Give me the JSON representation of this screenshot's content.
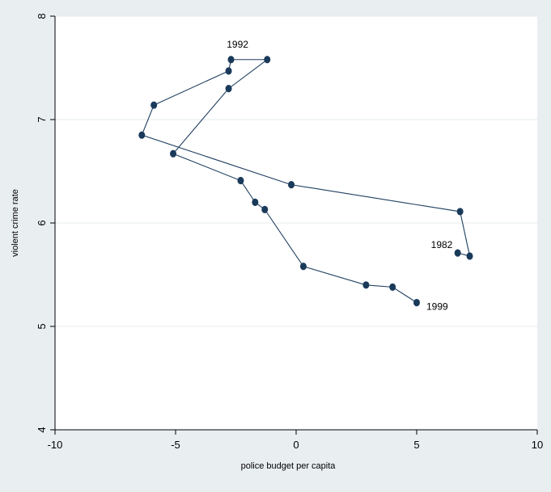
{
  "chart_data": {
    "type": "line",
    "title": "",
    "xlabel": "police budget per capita",
    "ylabel": "violent crime rate",
    "xlim": [
      -10,
      10
    ],
    "ylim": [
      4,
      8
    ],
    "xticks": [
      -10,
      -5,
      0,
      5,
      10
    ],
    "yticks": [
      4,
      5,
      6,
      7,
      8
    ],
    "x_tick_labels": [
      "-10",
      "-5",
      "0",
      "5",
      "10"
    ],
    "y_tick_labels": [
      "4",
      "5",
      "6",
      "7",
      "8"
    ],
    "grid": "horizontal",
    "legend": "none",
    "series": [
      {
        "x": [
          6.7,
          7.2,
          6.8,
          -0.2,
          -6.4,
          -5.9,
          -2.8,
          -2.7,
          -1.2,
          -2.8,
          -5.1,
          -2.3,
          -1.7,
          -1.3,
          0.3,
          2.9,
          4.0,
          5.0
        ],
        "y": [
          5.71,
          5.68,
          6.11,
          6.37,
          6.85,
          7.14,
          7.47,
          7.58,
          7.58,
          7.3,
          6.67,
          6.41,
          6.2,
          6.13,
          5.58,
          5.4,
          5.38,
          5.23
        ],
        "point_labels": {
          "0": "1982",
          "8": "1992",
          "17": "1999"
        }
      }
    ],
    "colors": {
      "line": "#1f3f60",
      "marker": "#1a3a5a",
      "plot_bg": "#ffffff",
      "page_bg": "#e9eef1",
      "grid": "#e6ebee"
    }
  }
}
